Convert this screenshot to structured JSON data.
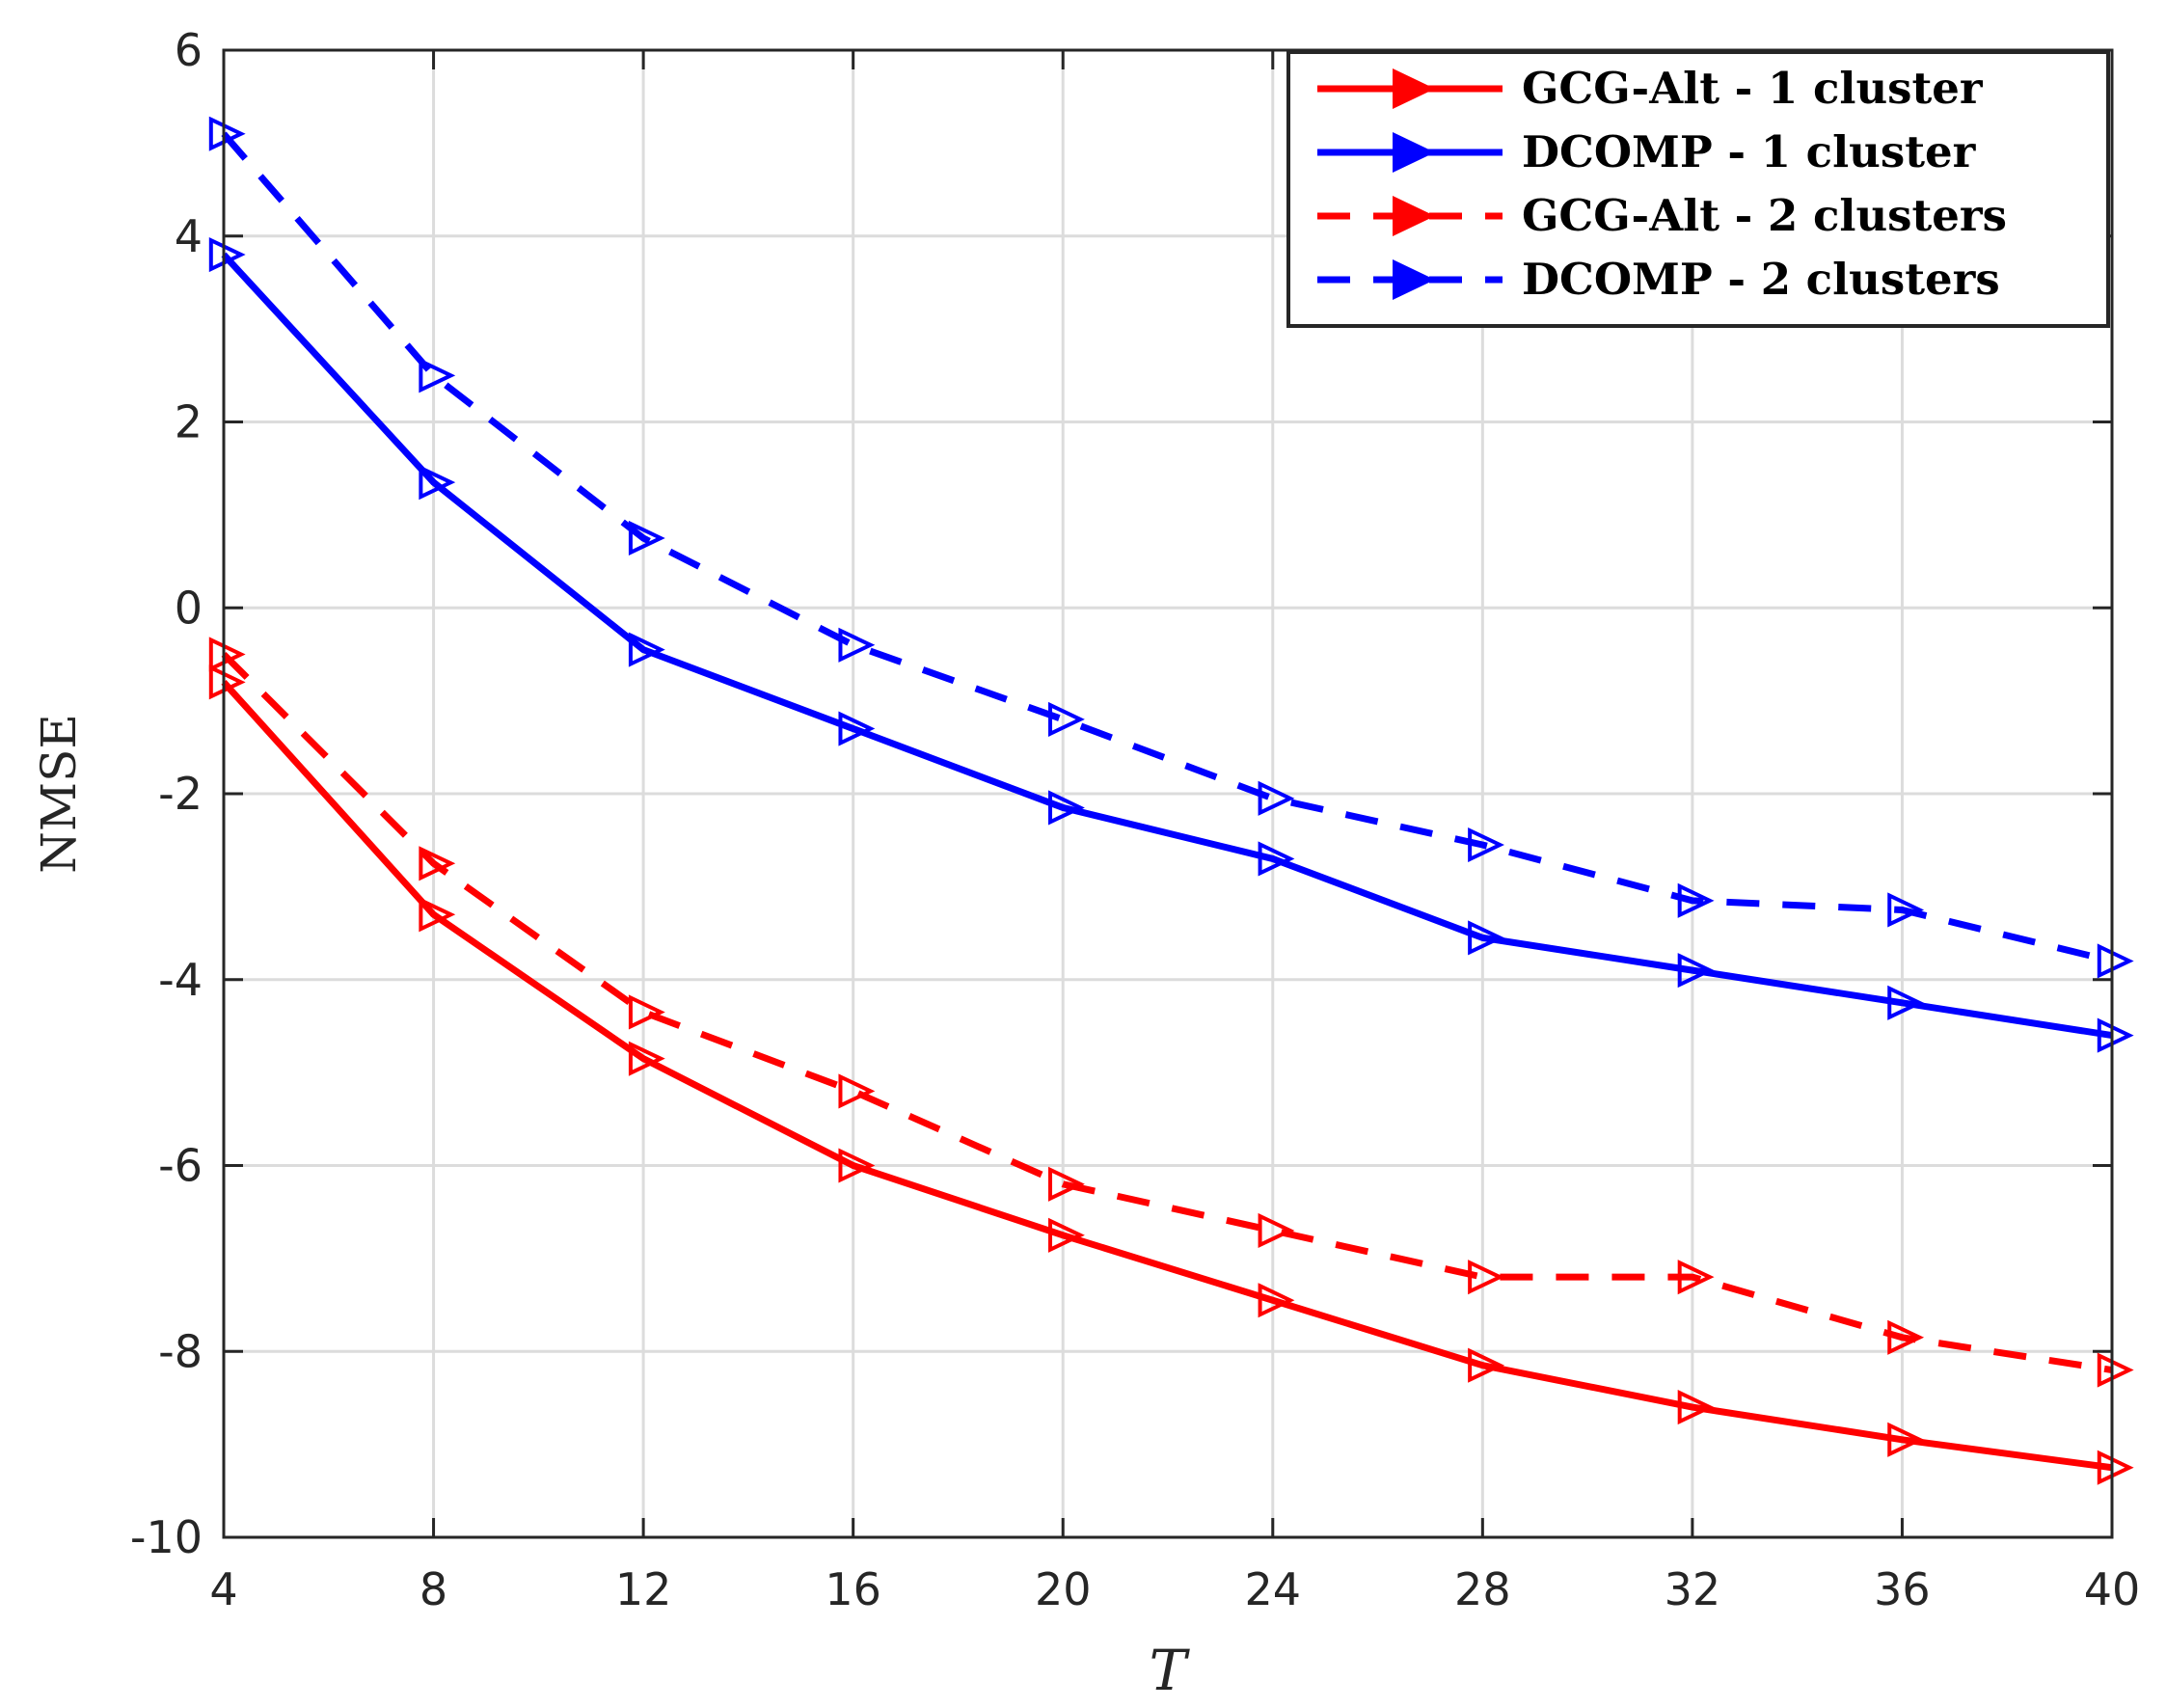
{
  "chart_data": {
    "type": "line",
    "title": "",
    "xlabel": "T",
    "ylabel": "NMSE",
    "xlim": [
      4,
      40
    ],
    "ylim": [
      -10,
      6
    ],
    "xticks": [
      4,
      8,
      12,
      16,
      20,
      24,
      28,
      32,
      36,
      40
    ],
    "yticks": [
      -10,
      -8,
      -6,
      -4,
      -2,
      0,
      2,
      4,
      6
    ],
    "grid": true,
    "legend_position": "top-right",
    "x": [
      4,
      8,
      12,
      16,
      20,
      24,
      28,
      32,
      36,
      40
    ],
    "series": [
      {
        "name": "GCG-Alt - 1 cluster",
        "color": "#ff0000",
        "dash": "solid",
        "marker": "triangle-right",
        "values": [
          -0.8,
          -3.3,
          -4.85,
          -6.0,
          -6.75,
          -7.45,
          -8.15,
          -8.6,
          -8.95,
          -9.25
        ]
      },
      {
        "name": "DCOMP - 1 cluster",
        "color": "#0000ff",
        "dash": "solid",
        "marker": "triangle-right",
        "values": [
          3.8,
          1.35,
          -0.45,
          -1.3,
          -2.15,
          -2.7,
          -3.55,
          -3.9,
          -4.25,
          -4.6
        ]
      },
      {
        "name": "GCG-Alt - 2 clusters",
        "color": "#ff0000",
        "dash": "dashed",
        "marker": "triangle-right",
        "values": [
          -0.5,
          -2.75,
          -4.35,
          -5.2,
          -6.2,
          -6.7,
          -7.2,
          -7.2,
          -7.85,
          -8.2
        ]
      },
      {
        "name": "DCOMP - 2 clusters",
        "color": "#0000ff",
        "dash": "dashed",
        "marker": "triangle-right",
        "values": [
          5.1,
          2.5,
          0.75,
          -0.4,
          -1.2,
          -2.05,
          -2.55,
          -3.15,
          -3.25,
          -3.8
        ]
      }
    ]
  }
}
